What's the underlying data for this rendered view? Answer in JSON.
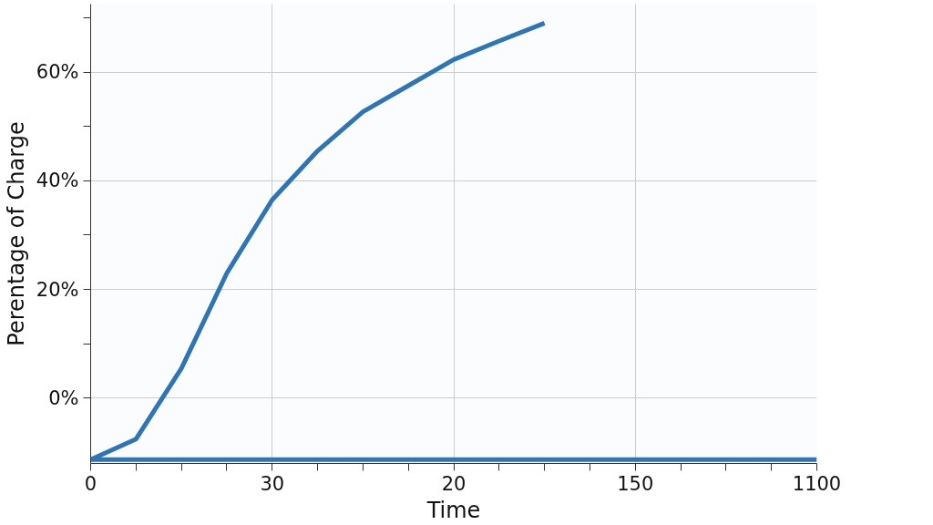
{
  "chart_data": {
    "type": "line",
    "xlabel": "Time",
    "ylabel": "Perentage of Charge",
    "categories": [
      "0",
      null,
      null,
      null,
      "30",
      null,
      null,
      null,
      "20",
      null,
      null,
      null,
      "150",
      null,
      null,
      null,
      "1100"
    ],
    "series": [
      {
        "color": "#2e75b6",
        "values": [
          -11.3,
          -7.5,
          5.5,
          23,
          36.5,
          45.5,
          52.7,
          57.5,
          62.3,
          65.7,
          69,
          null,
          null,
          null,
          null,
          null,
          null
        ]
      },
      {
        "color": "#2e75b6",
        "values": [
          -11.3,
          -11.3,
          -11.3,
          -11.3,
          -11.3,
          -11.3,
          -11.3,
          -11.3,
          -11.3,
          -11.3,
          -11.3,
          -11.3,
          -11.3,
          -11.3,
          -11.3,
          -11.3,
          -11.3
        ]
      }
    ],
    "ylim": [
      -12,
      72.5
    ],
    "yticks": [
      {
        "value": 0,
        "label": "0%"
      },
      {
        "value": 10,
        "label": null
      },
      {
        "value": 20,
        "label": "20%"
      },
      {
        "value": 30,
        "label": null
      },
      {
        "value": 40,
        "label": "40%"
      },
      {
        "value": 50,
        "label": null
      },
      {
        "value": 60,
        "label": "60%"
      },
      {
        "value": 70,
        "label": null
      }
    ],
    "grid": true,
    "line_style": "solid",
    "marker": "none"
  }
}
